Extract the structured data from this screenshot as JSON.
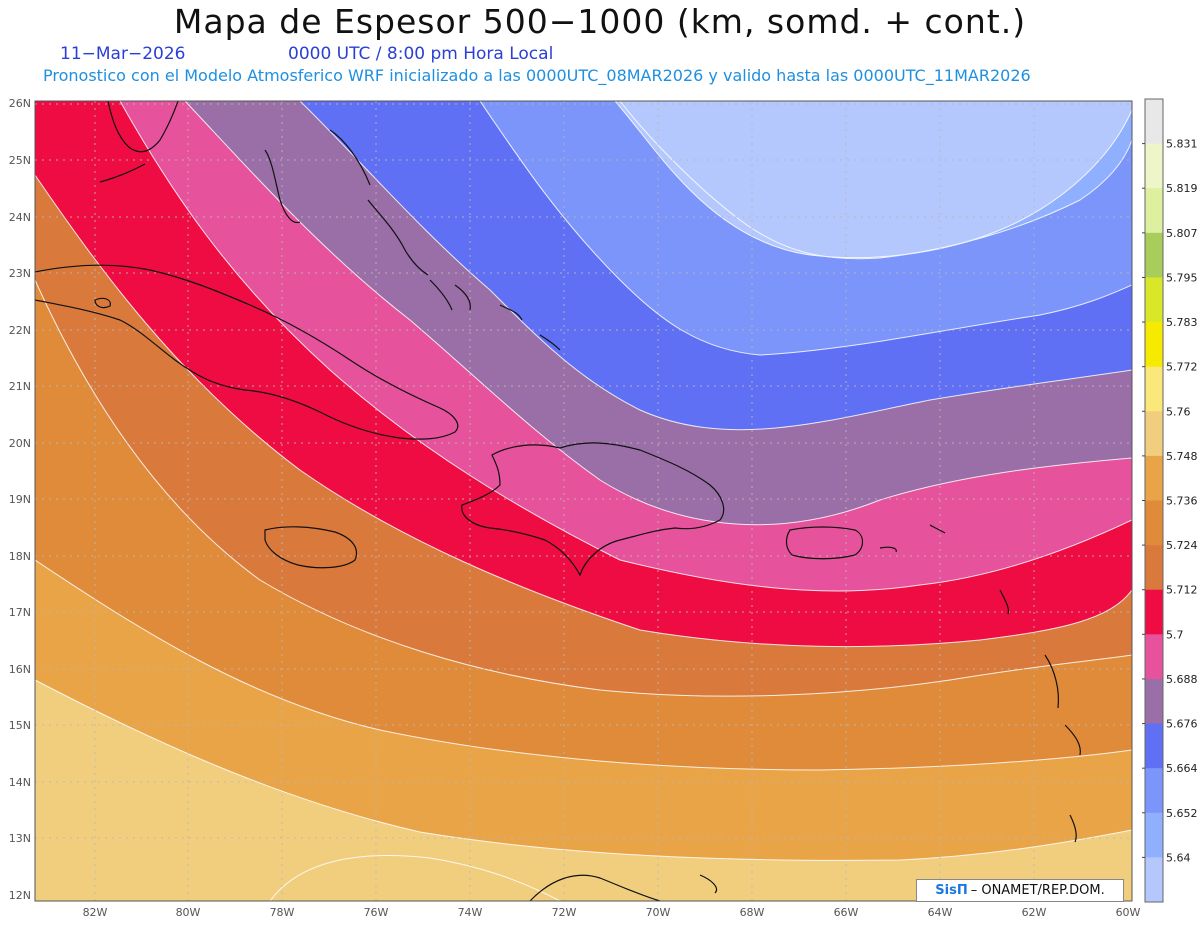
{
  "header": {
    "title": "Mapa de Espesor 500−1000 (km, somd. + cont.)",
    "date": "11−Mar−2026",
    "time": "0000 UTC / 8:00 pm Hora Local",
    "forecast": "Pronostico con el Modelo Atmosferico WRF inicializado a las 0000UTC_08MAR2026 y valido hasta las  0000UTC_11MAR2026"
  },
  "map": {
    "lat_labels": [
      "26N",
      "25N",
      "24N",
      "23N",
      "22N",
      "21N",
      "20N",
      "19N",
      "18N",
      "17N",
      "16N",
      "15N",
      "14N",
      "13N",
      "12N"
    ],
    "lon_labels": [
      "82W",
      "80W",
      "78W",
      "76W",
      "74W",
      "72W",
      "70W",
      "68W",
      "66W",
      "64W",
      "62W",
      "60W"
    ],
    "credit_brand": "SisΠ",
    "credit_text": "– ONAMET/REP.DOM."
  },
  "colorbar": {
    "labels": [
      "5.831",
      "5.819",
      "5.807",
      "5.795",
      "5.783",
      "5.772",
      "5.76",
      "5.748",
      "5.736",
      "5.724",
      "5.712",
      "5.7",
      "5.688",
      "5.676",
      "5.664",
      "5.652",
      "5.64"
    ],
    "colors": [
      "#e8e8e8",
      "#eef5c8",
      "#ddf0a0",
      "#a8cd5a",
      "#d8e828",
      "#f6ea00",
      "#fae87a",
      "#f1cd7e",
      "#e9a448",
      "#e08b3a",
      "#d97a3c",
      "#ee0c42",
      "#e6539c",
      "#9a6ea6",
      "#5f70f5",
      "#7c95fb",
      "#8fb0fe",
      "#b4c8fd"
    ]
  },
  "legend_colors": {
    "band_yellow": "#f8e48c",
    "band_tan": "#f1cd7e",
    "band_lightorange": "#e9a448",
    "band_orange": "#e08b3a",
    "band_darkorange": "#d97a3c",
    "band_red": "#ee0c42",
    "band_pink": "#e6539c",
    "band_purple": "#9a6ea6",
    "band_blue": "#5f70f5",
    "band_midblue": "#7c95fb",
    "band_lightblue": "#8fb0fe",
    "band_palest": "#b4c8fd"
  }
}
